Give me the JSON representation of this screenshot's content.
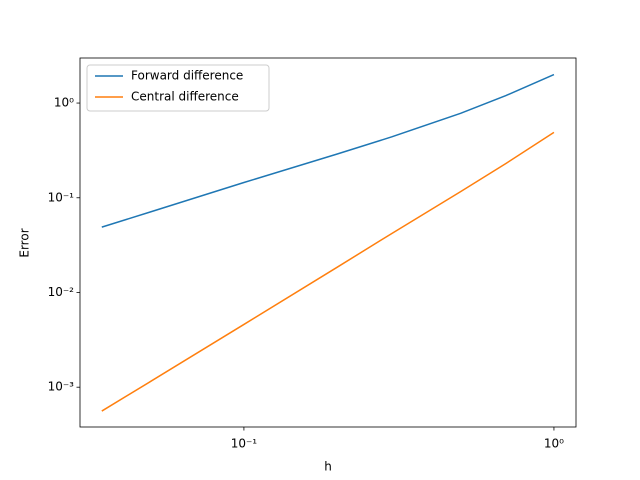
{
  "chart_data": {
    "type": "line",
    "xlabel": "h",
    "ylabel": "Error",
    "xscale": "log",
    "yscale": "log",
    "legend": "upper left",
    "x": [
      0.0348,
      0.05,
      0.1,
      0.2,
      0.3,
      0.5,
      0.7,
      1.0
    ],
    "series": [
      {
        "name": "Forward difference",
        "color": "#1f77b4",
        "values": [
          0.049,
          0.071,
          0.145,
          0.29,
          0.44,
          0.78,
          1.2,
          2.0
        ]
      },
      {
        "name": "Central difference",
        "color": "#ff7f0e",
        "values": [
          0.00056,
          0.00115,
          0.0046,
          0.0185,
          0.042,
          0.116,
          0.23,
          0.49
        ]
      }
    ],
    "xlim": [
      0.0296,
      1.178
    ],
    "ylim": [
      0.00038,
      2.99
    ],
    "xticks": [
      {
        "value": 0.1,
        "label": "10⁻¹"
      },
      {
        "value": 1,
        "label": "10⁰"
      }
    ],
    "yticks": [
      {
        "value": 0.001,
        "label": "10⁻³"
      },
      {
        "value": 0.01,
        "label": "10⁻²"
      },
      {
        "value": 0.1,
        "label": "10⁻¹"
      },
      {
        "value": 1,
        "label": "10⁰"
      }
    ]
  }
}
